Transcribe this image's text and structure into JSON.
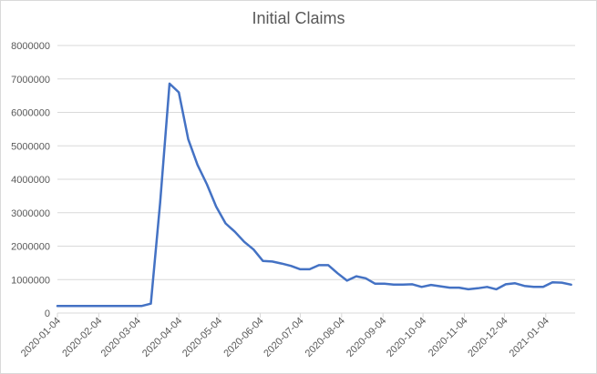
{
  "chart_data": {
    "type": "line",
    "title": "Initial Claims",
    "xlabel": "",
    "ylabel": "",
    "ylim": [
      0,
      8000000
    ],
    "yticks": [
      "0",
      "1000000",
      "2000000",
      "3000000",
      "4000000",
      "5000000",
      "6000000",
      "7000000",
      "8000000"
    ],
    "xticks": [
      "2020-01-04",
      "2020-02-04",
      "2020-03-04",
      "2020-04-04",
      "2020-05-04",
      "2020-06-04",
      "2020-07-04",
      "2020-08-04",
      "2020-09-04",
      "2020-10-04",
      "2020-11-04",
      "2020-12-04",
      "2021-01-04"
    ],
    "grid": true,
    "legend": "none",
    "line_color": "#4472C4",
    "series": [
      {
        "x": [
          "2020-01-04",
          "2020-01-11",
          "2020-01-18",
          "2020-01-25",
          "2020-02-01",
          "2020-02-08",
          "2020-02-15",
          "2020-02-22",
          "2020-02-29",
          "2020-03-07",
          "2020-03-14",
          "2020-03-21",
          "2020-03-28",
          "2020-04-04",
          "2020-04-11",
          "2020-04-18",
          "2020-04-25",
          "2020-05-02",
          "2020-05-09",
          "2020-05-16",
          "2020-05-23",
          "2020-05-30",
          "2020-06-06",
          "2020-06-13",
          "2020-06-20",
          "2020-06-27",
          "2020-07-04",
          "2020-07-11",
          "2020-07-18",
          "2020-07-25",
          "2020-08-01",
          "2020-08-08",
          "2020-08-15",
          "2020-08-22",
          "2020-08-29",
          "2020-09-05",
          "2020-09-12",
          "2020-09-19",
          "2020-09-26",
          "2020-10-03",
          "2020-10-10",
          "2020-10-17",
          "2020-10-24",
          "2020-10-31",
          "2020-11-07",
          "2020-11-14",
          "2020-11-21",
          "2020-11-28",
          "2020-12-05",
          "2020-12-12",
          "2020-12-19",
          "2020-12-26",
          "2021-01-02",
          "2021-01-09",
          "2021-01-16",
          "2021-01-23"
        ],
        "values": [
          210000,
          210000,
          210000,
          210000,
          210000,
          210000,
          210000,
          210000,
          210000,
          210000,
          280000,
          3300000,
          6860000,
          6600000,
          5200000,
          4430000,
          3850000,
          3180000,
          2680000,
          2430000,
          2130000,
          1900000,
          1560000,
          1540000,
          1480000,
          1410000,
          1310000,
          1310000,
          1430000,
          1430000,
          1190000,
          970000,
          1100000,
          1040000,
          880000,
          880000,
          850000,
          850000,
          860000,
          780000,
          840000,
          800000,
          760000,
          760000,
          710000,
          740000,
          780000,
          710000,
          860000,
          890000,
          810000,
          780000,
          780000,
          920000,
          910000,
          850000
        ]
      }
    ]
  }
}
